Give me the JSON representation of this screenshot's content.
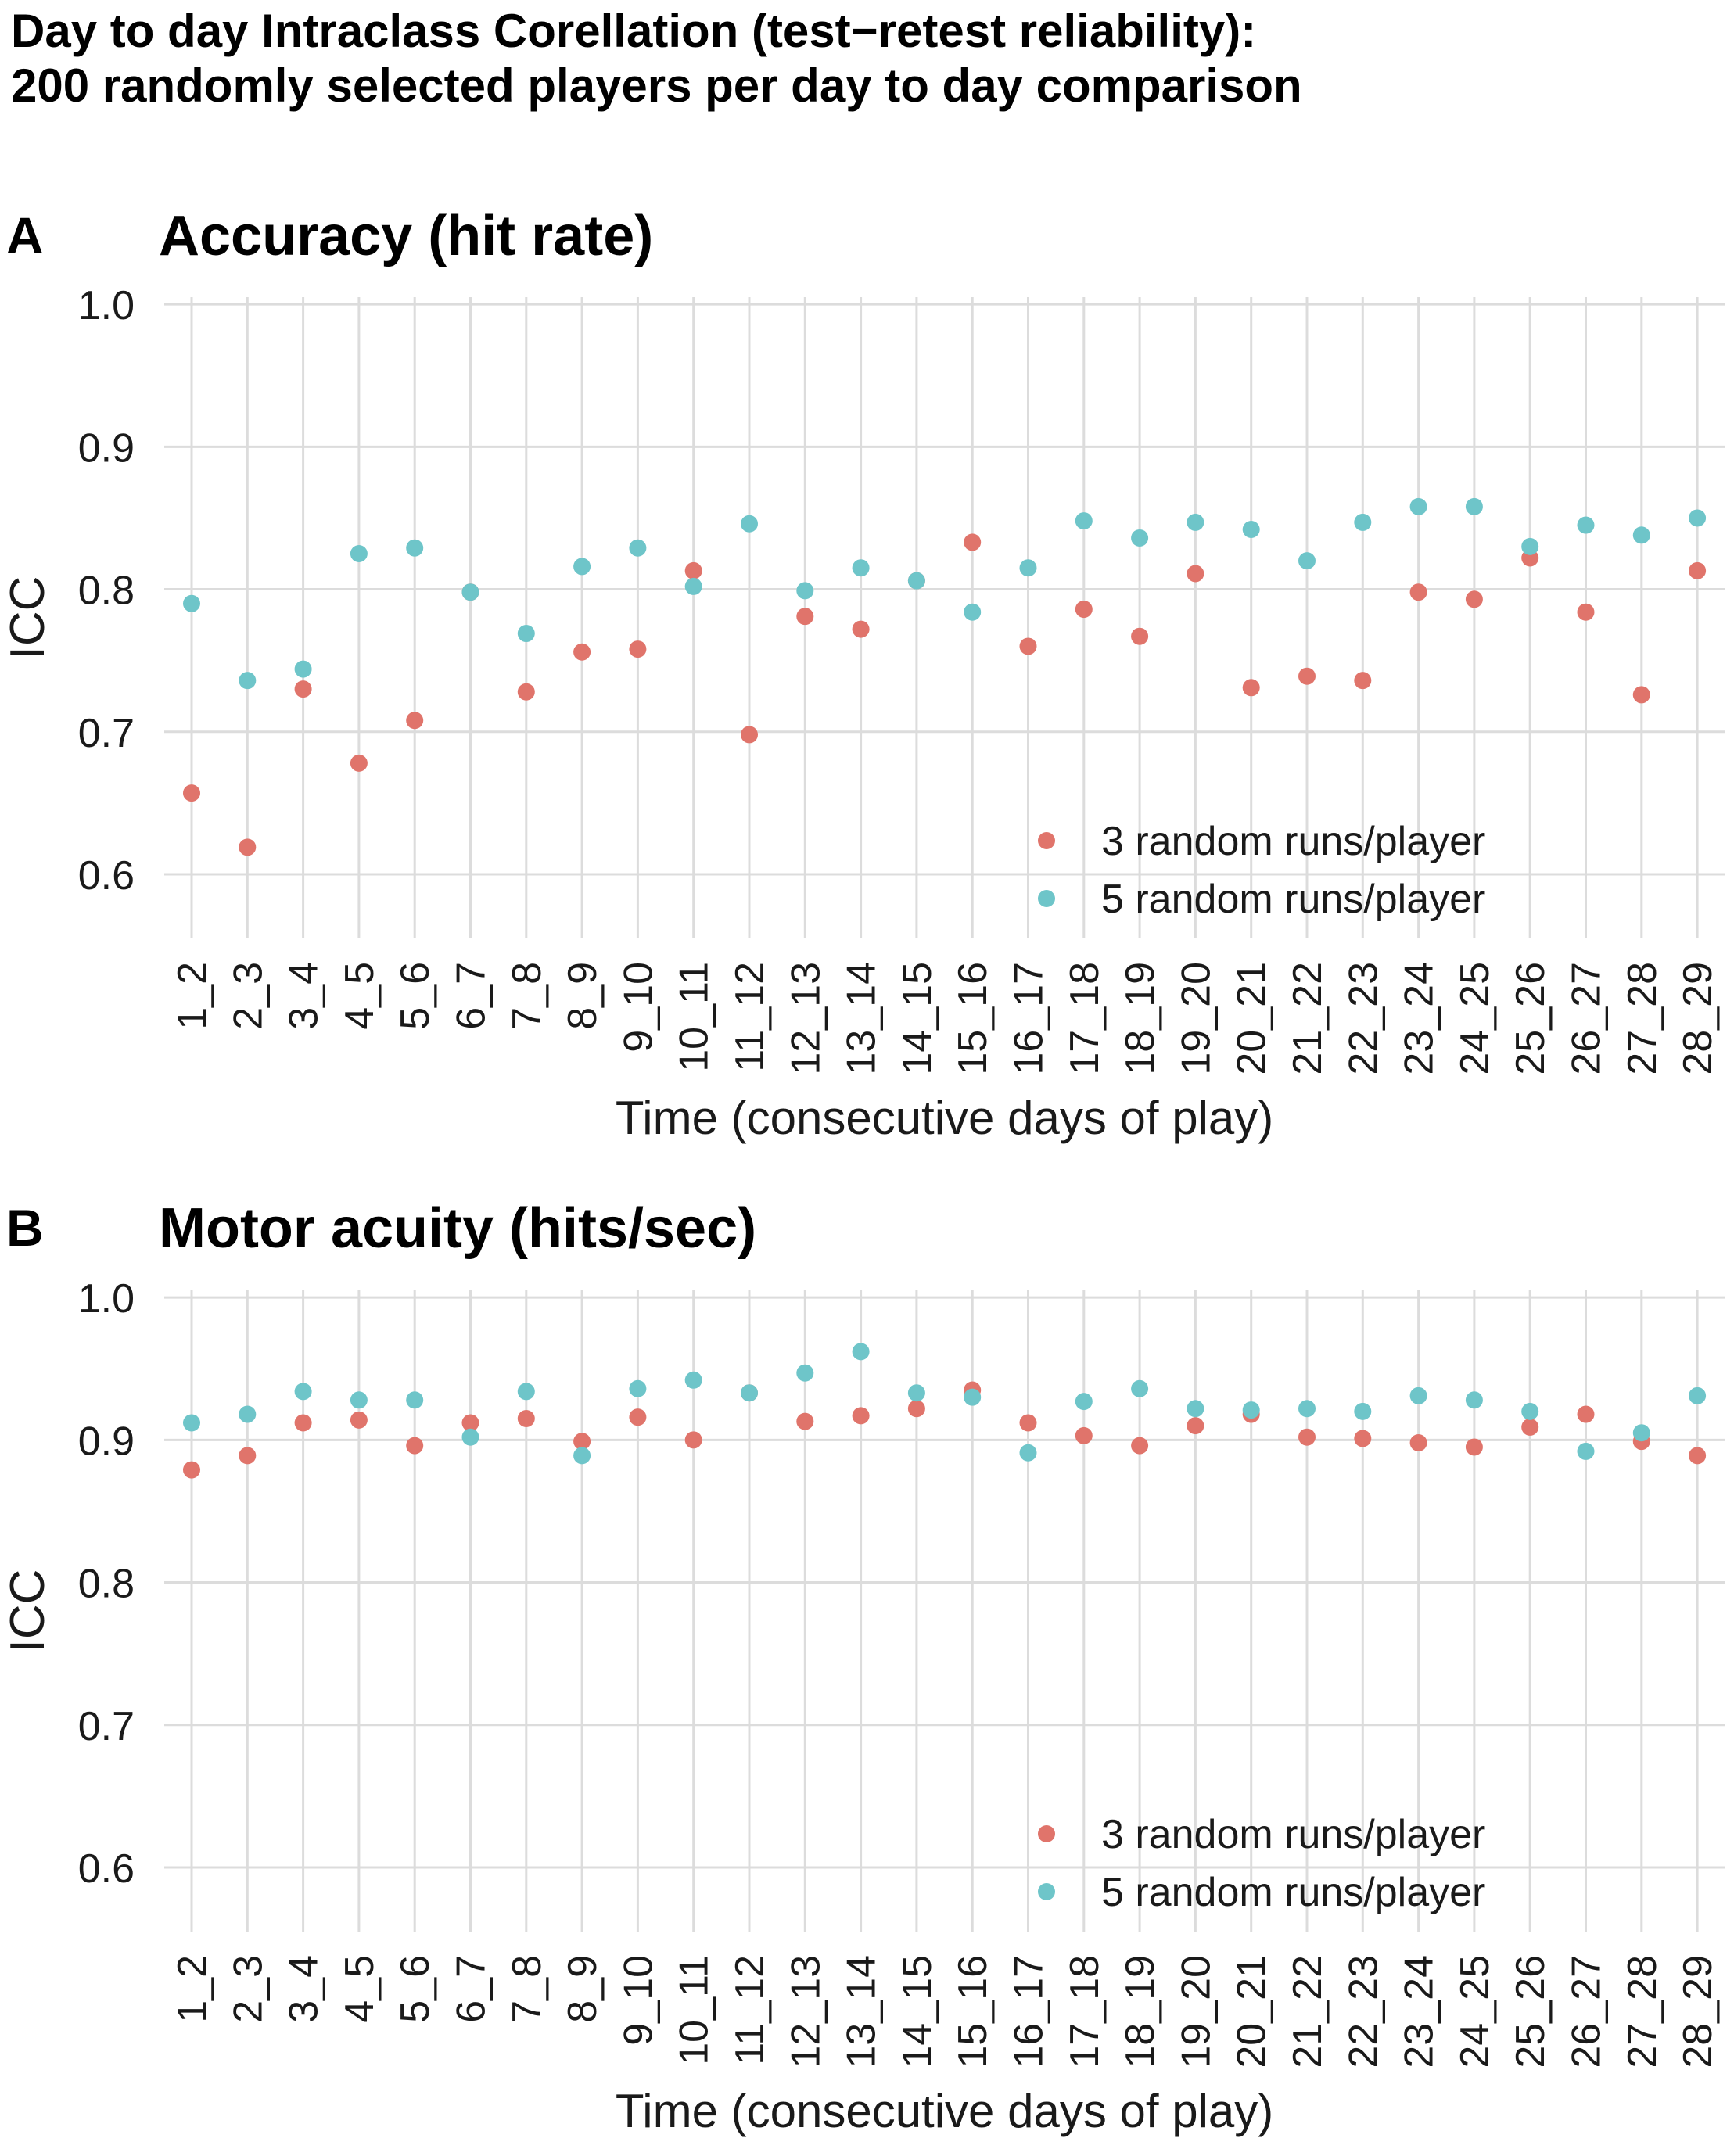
{
  "figure": {
    "title_line1": "Day to day Intraclass Corellation (test−retest reliability):",
    "title_line2": "200 randomly selected players per day to day comparison"
  },
  "colors": {
    "series_3": "#E0746B",
    "series_5": "#6EC5C9",
    "grid": "#DCDCDC"
  },
  "chart_data": [
    {
      "type": "scatter",
      "panel": "A",
      "title": "Accuracy (hit rate)",
      "xlabel": "Time (consecutive days of play)",
      "ylabel": "ICC",
      "ylim": [
        0.555,
        1.005
      ],
      "yticks": [
        0.6,
        0.7,
        0.8,
        0.9,
        1.0
      ],
      "ytick_labels": [
        "0.6",
        "0.7",
        "0.8",
        "0.9",
        "1.0"
      ],
      "grid": true,
      "legend_position": "bottom-right",
      "categories": [
        "1_2",
        "2_3",
        "3_4",
        "4_5",
        "5_6",
        "6_7",
        "7_8",
        "8_9",
        "9_10",
        "10_11",
        "11_12",
        "12_13",
        "13_14",
        "14_15",
        "15_16",
        "16_17",
        "17_18",
        "18_19",
        "19_20",
        "20_21",
        "21_22",
        "22_23",
        "23_24",
        "24_25",
        "25_26",
        "26_27",
        "27_28",
        "28_29"
      ],
      "series": [
        {
          "name": "3 random runs/player",
          "color": "#E0746B",
          "values": [
            0.657,
            0.619,
            0.73,
            0.678,
            0.708,
            0.798,
            0.728,
            0.756,
            0.758,
            0.813,
            0.698,
            0.781,
            0.772,
            0.806,
            0.833,
            0.76,
            0.786,
            0.767,
            0.811,
            0.731,
            0.739,
            0.736,
            0.798,
            0.793,
            0.822,
            0.784,
            0.726,
            0.813
          ]
        },
        {
          "name": "5 random runs/player",
          "color": "#6EC5C9",
          "values": [
            0.79,
            0.736,
            0.744,
            0.825,
            0.829,
            0.798,
            0.769,
            0.816,
            0.829,
            0.802,
            0.846,
            0.799,
            0.815,
            0.806,
            0.784,
            0.815,
            0.848,
            0.836,
            0.847,
            0.842,
            0.82,
            0.847,
            0.858,
            0.858,
            0.83,
            0.845,
            0.838,
            0.85
          ]
        }
      ]
    },
    {
      "type": "scatter",
      "panel": "B",
      "title": "Motor acuity (hits/sec)",
      "xlabel": "Time (consecutive days of play)",
      "ylabel": "ICC",
      "ylim": [
        0.555,
        1.005
      ],
      "yticks": [
        0.6,
        0.7,
        0.8,
        0.9,
        1.0
      ],
      "ytick_labels": [
        "0.6",
        "0.7",
        "0.8",
        "0.9",
        "1.0"
      ],
      "grid": true,
      "legend_position": "bottom-right",
      "categories": [
        "1_2",
        "2_3",
        "3_4",
        "4_5",
        "5_6",
        "6_7",
        "7_8",
        "8_9",
        "9_10",
        "10_11",
        "11_12",
        "12_13",
        "13_14",
        "14_15",
        "15_16",
        "16_17",
        "17_18",
        "18_19",
        "19_20",
        "20_21",
        "21_22",
        "22_23",
        "23_24",
        "24_25",
        "25_26",
        "26_27",
        "27_28",
        "28_29"
      ],
      "series": [
        {
          "name": "3 random runs/player",
          "color": "#E0746B",
          "values": [
            0.879,
            0.889,
            0.912,
            0.914,
            0.896,
            0.912,
            0.915,
            0.899,
            0.916,
            0.9,
            0.933,
            0.913,
            0.917,
            0.922,
            0.935,
            0.912,
            0.903,
            0.896,
            0.91,
            0.918,
            0.902,
            0.901,
            0.898,
            0.895,
            0.909,
            0.918,
            0.899,
            0.889
          ]
        },
        {
          "name": "5 random runs/player",
          "color": "#6EC5C9",
          "values": [
            0.912,
            0.918,
            0.934,
            0.928,
            0.928,
            0.902,
            0.934,
            0.889,
            0.936,
            0.942,
            0.933,
            0.947,
            0.962,
            0.933,
            0.93,
            0.891,
            0.927,
            0.936,
            0.922,
            0.921,
            0.922,
            0.92,
            0.931,
            0.928,
            0.92,
            0.892,
            0.905,
            0.931
          ]
        }
      ]
    }
  ]
}
